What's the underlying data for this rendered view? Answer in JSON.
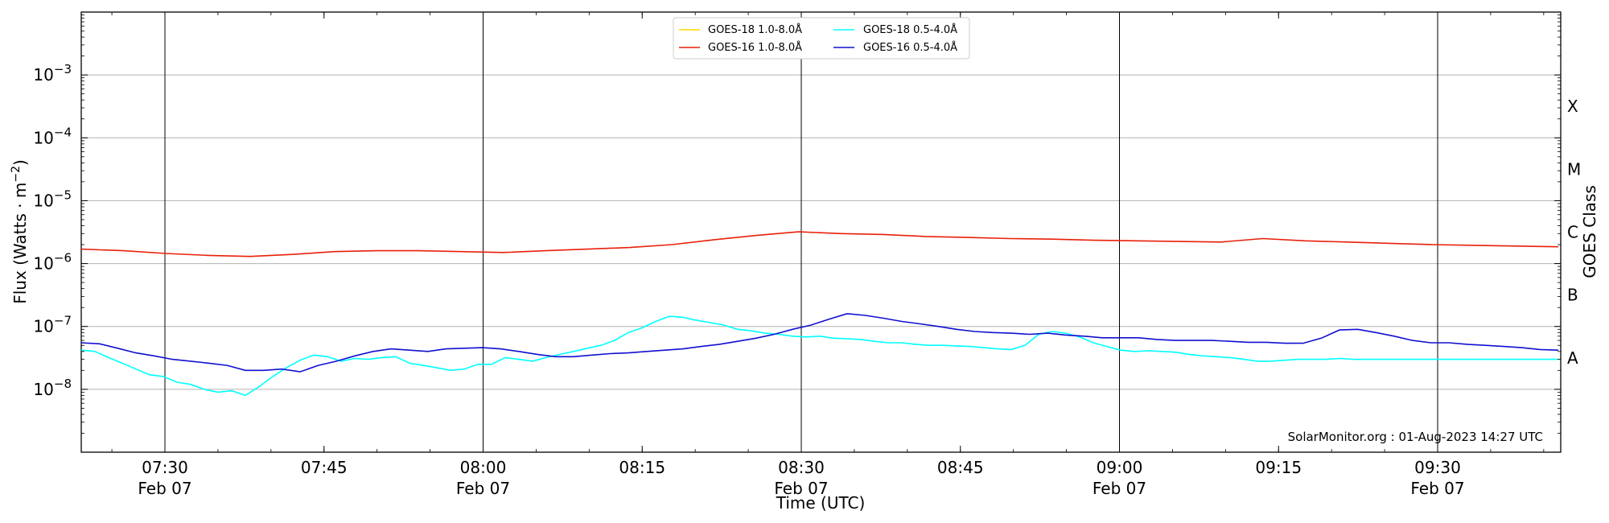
{
  "chart_data": {
    "type": "line",
    "title": "",
    "xlabel": "Time (UTC)",
    "ylabel": "Flux (Watts · m",
    "ylabel_sup": "−2",
    "ylabel_close": ")",
    "right_label": "GOES Class",
    "y_scale": "log",
    "ylim": [
      1e-09,
      0.01
    ],
    "xlim": [
      "2024-02-07 07:22",
      "2024-02-07 09:46"
    ],
    "grid": "horizontal at decades",
    "legend_position": "top-center",
    "credit": "SolarMonitor.org : 01-Aug-2023 14:27 UTC",
    "x_ticks": [
      {
        "minute": 30,
        "line1": "07:30",
        "line2": "Feb 07",
        "major": true
      },
      {
        "minute": 45,
        "line1": "07:45",
        "line2": "",
        "major": false
      },
      {
        "minute": 60,
        "line1": "08:00",
        "line2": "Feb 07",
        "major": true
      },
      {
        "minute": 75,
        "line1": "08:15",
        "line2": "",
        "major": false
      },
      {
        "minute": 90,
        "line1": "08:30",
        "line2": "Feb 07",
        "major": true
      },
      {
        "minute": 105,
        "line1": "08:45",
        "line2": "",
        "major": false
      },
      {
        "minute": 120,
        "line1": "09:00",
        "line2": "Feb 07",
        "major": true
      },
      {
        "minute": 135,
        "line1": "09:15",
        "line2": "",
        "major": false
      },
      {
        "minute": 150,
        "line1": "09:30",
        "line2": "Feb 07",
        "major": true
      }
    ],
    "y_ticks": [
      {
        "exp": -8,
        "label": "10",
        "sup": "−8"
      },
      {
        "exp": -7,
        "label": "10",
        "sup": "−7"
      },
      {
        "exp": -6,
        "label": "10",
        "sup": "−6"
      },
      {
        "exp": -5,
        "label": "10",
        "sup": "−5"
      },
      {
        "exp": -4,
        "label": "10",
        "sup": "−4"
      },
      {
        "exp": -3,
        "label": "10",
        "sup": "−3"
      }
    ],
    "goes_classes": [
      {
        "label": "A",
        "exp": -7.5
      },
      {
        "label": "B",
        "exp": -6.5
      },
      {
        "label": "C",
        "exp": -5.5
      },
      {
        "label": "M",
        "exp": -4.5
      },
      {
        "label": "X",
        "exp": -3.5
      }
    ],
    "series": [
      {
        "name": "GOES-18 1.0-8.0Å",
        "color": "#ffd700",
        "x": [],
        "y": []
      },
      {
        "name": "GOES-16 1.0-8.0Å",
        "color": "#e8200a",
        "x": [
          0,
          5,
          10,
          15,
          20,
          25,
          30,
          35,
          40,
          45,
          50,
          55,
          60,
          65,
          70,
          75,
          80,
          85,
          90,
          92,
          95,
          100,
          105,
          110,
          115,
          120,
          125,
          130,
          135,
          140,
          142,
          145,
          150,
          155,
          160,
          144
        ],
        "y": [
          1.7e-06,
          1.6e-06,
          1.45e-06,
          1.35e-06,
          1.3e-06,
          1.4e-06,
          1.55e-06,
          1.6e-06,
          1.6e-06,
          1.55e-06,
          1.5e-06,
          1.6e-06,
          1.7e-06,
          1.8e-06,
          2e-06,
          2.4e-06,
          2.8e-06,
          3.2e-06,
          3e-06,
          2.9e-06,
          2.7e-06,
          2.6e-06,
          2.5e-06,
          2.45e-06,
          2.35e-06,
          2.3e-06,
          2.25e-06,
          2.2e-06,
          2.5e-06,
          2.3e-06,
          2.2e-06,
          2.1e-06,
          2e-06,
          1.95e-06,
          1.9e-06,
          1.85e-06
        ]
      },
      {
        "name": "GOES-18 0.5-4.0Å",
        "color": "#00ffff",
        "x": [
          0,
          3,
          6,
          9,
          12,
          15,
          18,
          21,
          24,
          27,
          30,
          33,
          36,
          39,
          42,
          45,
          48,
          51,
          54,
          57,
          60,
          63,
          66,
          69,
          72,
          75,
          78,
          81,
          84,
          87,
          90,
          93,
          96,
          99,
          102,
          105,
          108,
          111,
          114,
          117,
          120,
          123,
          126,
          129,
          132,
          135,
          138,
          141,
          144,
          147,
          150,
          153,
          156,
          159,
          162,
          165,
          168,
          171,
          174,
          177,
          180,
          183,
          186,
          189,
          192,
          195,
          198,
          201,
          204,
          207,
          210,
          213,
          216,
          219,
          222,
          225,
          228,
          231,
          234,
          237,
          240,
          243,
          246,
          249,
          252,
          255,
          258,
          261,
          264,
          267,
          270,
          273,
          276,
          279,
          282,
          285,
          288,
          291,
          294,
          297,
          300,
          303,
          306,
          309,
          312,
          315,
          318,
          321,
          324
        ],
        "y": [
          4.2e-08,
          4e-08,
          3.2e-08,
          2.6e-08,
          2.1e-08,
          1.7e-08,
          1.6e-08,
          1.3e-08,
          1.2e-08,
          1e-08,
          9e-09,
          9.5e-09,
          8e-09,
          1.1e-08,
          1.6e-08,
          2.2e-08,
          2.9e-08,
          3.5e-08,
          3.3e-08,
          2.8e-08,
          3.1e-08,
          3e-08,
          3.2e-08,
          3.3e-08,
          2.6e-08,
          2.4e-08,
          2.2e-08,
          2e-08,
          2.1e-08,
          2.5e-08,
          2.5e-08,
          3.2e-08,
          3e-08,
          2.8e-08,
          3.2e-08,
          3.6e-08,
          4e-08,
          4.5e-08,
          5e-08,
          6e-08,
          8e-08,
          9.5e-08,
          1.2e-07,
          1.45e-07,
          1.4e-07,
          1.25e-07,
          1.15e-07,
          1.05e-07,
          9e-08,
          8.5e-08,
          7.8e-08,
          7.5e-08,
          7e-08,
          6.8e-08,
          7e-08,
          6.5e-08,
          6.4e-08,
          6.2e-08,
          5.8e-08,
          5.5e-08,
          5.5e-08,
          5.2e-08,
          5e-08,
          5e-08,
          4.9e-08,
          4.8e-08,
          4.6e-08,
          4.4e-08,
          4.3e-08,
          5e-08,
          7.5e-08,
          8.3e-08,
          7.8e-08,
          6.8e-08,
          5.5e-08,
          4.8e-08,
          4.2e-08,
          4e-08,
          4.1e-08,
          4e-08,
          3.9e-08,
          3.6e-08,
          3.4e-08,
          3.3e-08,
          3.2e-08,
          3e-08,
          2.8e-08,
          2.8e-08,
          2.9e-08,
          3e-08,
          3e-08,
          3e-08,
          3.1e-08,
          3e-08,
          3e-08,
          3e-08,
          3e-08,
          3e-08,
          3e-08,
          3e-08,
          3e-08,
          3e-08,
          3e-08,
          3e-08,
          3e-08,
          3e-08,
          3e-08,
          3e-08,
          3e-08
        ]
      },
      {
        "name": "GOES-16 0.5-4.0Å",
        "color": "#1010d0",
        "x": [
          0,
          3,
          6,
          9,
          12,
          15,
          18,
          21,
          24,
          27,
          30,
          33,
          36,
          39,
          42,
          45,
          48,
          51,
          54,
          57,
          60,
          63,
          66,
          69,
          72,
          75,
          78,
          81,
          84,
          87,
          90,
          93,
          96,
          99,
          102,
          105,
          108,
          111,
          114,
          117,
          120,
          123,
          126,
          129,
          132,
          135,
          138,
          141,
          144,
          147,
          150,
          153,
          156,
          159,
          162,
          165,
          168,
          171,
          174,
          177,
          180,
          183,
          186,
          189,
          192,
          195,
          198,
          201,
          204,
          207,
          210,
          213,
          216,
          219,
          222,
          225,
          228,
          231,
          234,
          237,
          240,
          243
        ],
        "y": [
          5.5e-08,
          5.3e-08,
          4.5e-08,
          3.8e-08,
          3.4e-08,
          3e-08,
          2.8e-08,
          2.6e-08,
          2.4e-08,
          2e-08,
          2e-08,
          2.1e-08,
          1.9e-08,
          2.4e-08,
          2.8e-08,
          3.4e-08,
          4e-08,
          4.4e-08,
          4.2e-08,
          4e-08,
          4.4e-08,
          4.5e-08,
          4.6e-08,
          4.4e-08,
          4e-08,
          3.6e-08,
          3.3e-08,
          3.3e-08,
          3.5e-08,
          3.7e-08,
          3.8e-08,
          4e-08,
          4.2e-08,
          4.4e-08,
          4.8e-08,
          5.2e-08,
          5.8e-08,
          6.5e-08,
          7.5e-08,
          9e-08,
          1.05e-07,
          1.3e-07,
          1.6e-07,
          1.5e-07,
          1.35e-07,
          1.2e-07,
          1.1e-07,
          1e-07,
          9e-08,
          8.3e-08,
          8e-08,
          7.8e-08,
          7.5e-08,
          7.8e-08,
          7.3e-08,
          7e-08,
          6.6e-08,
          6.6e-08,
          6.6e-08,
          6.2e-08,
          6e-08,
          6e-08,
          6e-08,
          5.8e-08,
          5.6e-08,
          5.6e-08,
          5.4e-08,
          5.4e-08,
          6.5e-08,
          8.8e-08,
          9e-08,
          8e-08,
          7e-08,
          6e-08,
          5.5e-08,
          5.5e-08,
          5.2e-08,
          5e-08,
          4.8e-08,
          4.6e-08,
          4.3e-08,
          4.2e-08
        ]
      }
    ]
  }
}
